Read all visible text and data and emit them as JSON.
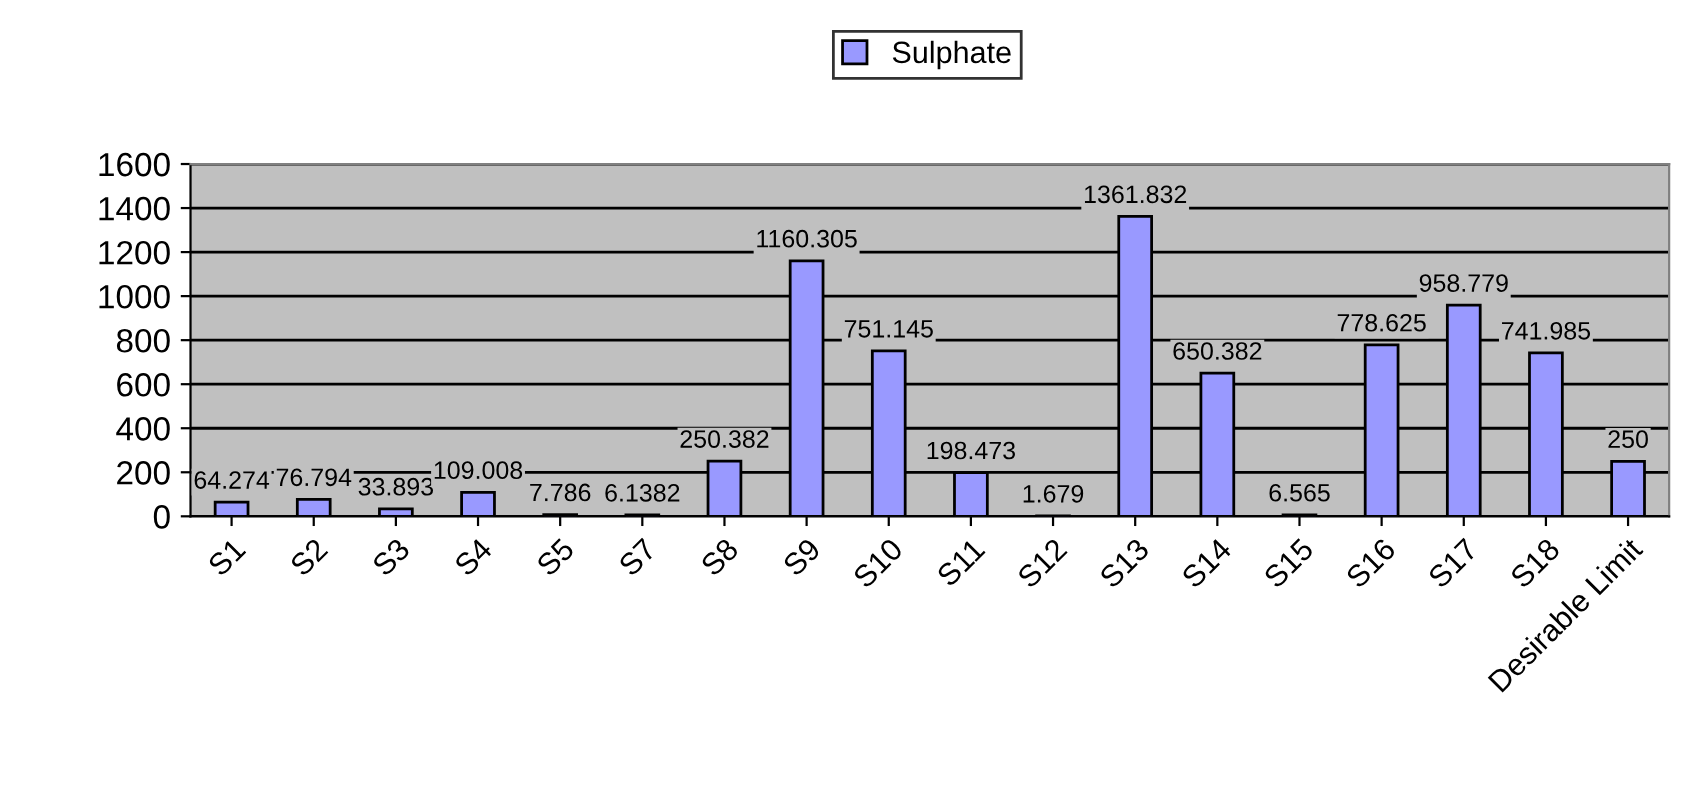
{
  "chart_data": {
    "type": "bar",
    "categories": [
      "S1",
      "S2",
      "S3",
      "S4",
      "S5",
      "S7",
      "S8",
      "S9",
      "S10",
      "S11",
      "S12",
      "S13",
      "S14",
      "S15",
      "S16",
      "S17",
      "S18",
      "Desirable Limit"
    ],
    "series": [
      {
        "name": "Sulphate",
        "color": "#9999ff",
        "values": [
          64.274,
          76.794,
          33.893,
          109.008,
          7.786,
          6.1382,
          250.382,
          1160.305,
          751.145,
          198.473,
          1.679,
          1361.832,
          650.382,
          6.565,
          778.625,
          958.779,
          741.985,
          250
        ]
      }
    ],
    "ylim": [
      0,
      1600
    ],
    "yticks": [
      0,
      200,
      400,
      600,
      800,
      1000,
      1200,
      1400,
      1600
    ],
    "grid": "y",
    "legend": "top",
    "data_labels": true
  }
}
